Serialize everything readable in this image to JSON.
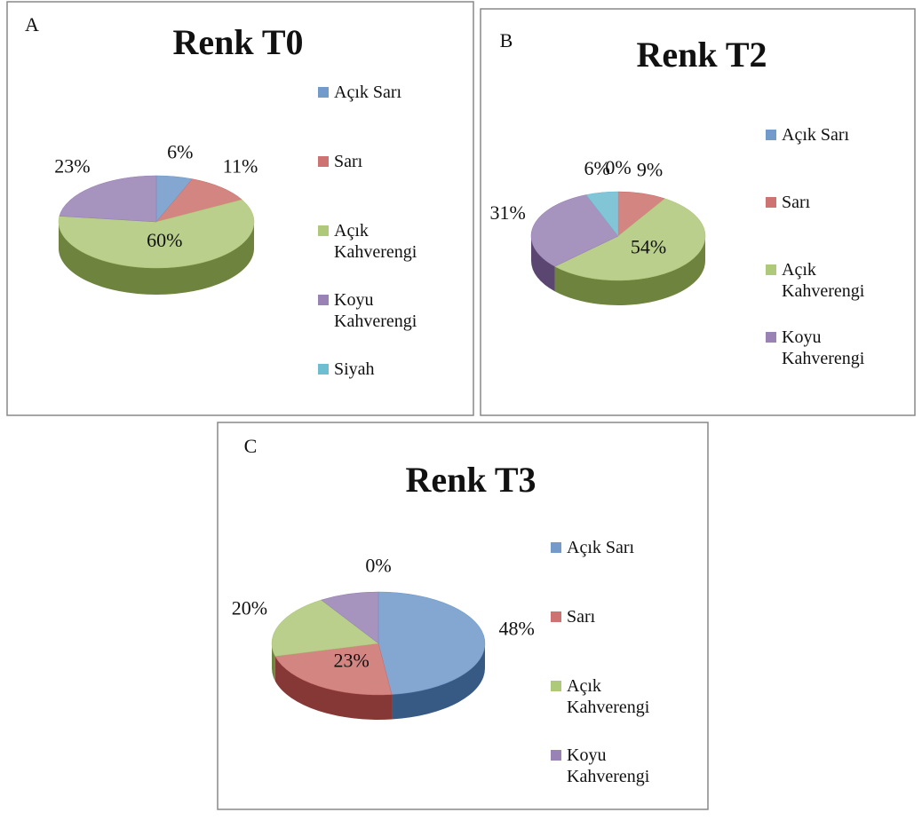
{
  "chart_data": [
    {
      "type": "pie",
      "panel": "A",
      "title": "Renk T0",
      "categories": [
        "Açık Sarı",
        "Sarı",
        "Açık Kahverengi",
        "Koyu Kahverengi",
        "Siyah"
      ],
      "values": [
        6,
        11,
        60,
        23,
        0
      ],
      "value_labels": [
        "6%",
        "11%",
        "60%",
        "23%",
        null
      ],
      "colors": [
        "#4f81bd",
        "#c0504d",
        "#9bbb59",
        "#8064a2",
        "#4bacc6"
      ]
    },
    {
      "type": "pie",
      "panel": "B",
      "title": "Renk T2",
      "categories": [
        "Açık Sarı",
        "Sarı",
        "Açık Kahverengi",
        "Koyu Kahverengi",
        null
      ],
      "values": [
        0,
        9,
        54,
        31,
        6
      ],
      "value_labels": [
        "0%",
        "9%",
        "54%",
        "31%",
        "6%"
      ],
      "colors": [
        "#4f81bd",
        "#c0504d",
        "#9bbb59",
        "#8064a2",
        "#4bacc6"
      ]
    },
    {
      "type": "pie",
      "panel": "C",
      "title": "Renk T3",
      "categories": [
        "Açık Sarı",
        "Sarı",
        "Açık Kahverengi",
        "Koyu Kahverengi",
        null
      ],
      "values": [
        48,
        23,
        20,
        9,
        0
      ],
      "value_labels": [
        "48%",
        "23%",
        "20%",
        null,
        "0%"
      ],
      "colors": [
        "#4f81bd",
        "#c0504d",
        "#9bbb59",
        "#8064a2",
        "#4bacc6"
      ]
    }
  ]
}
